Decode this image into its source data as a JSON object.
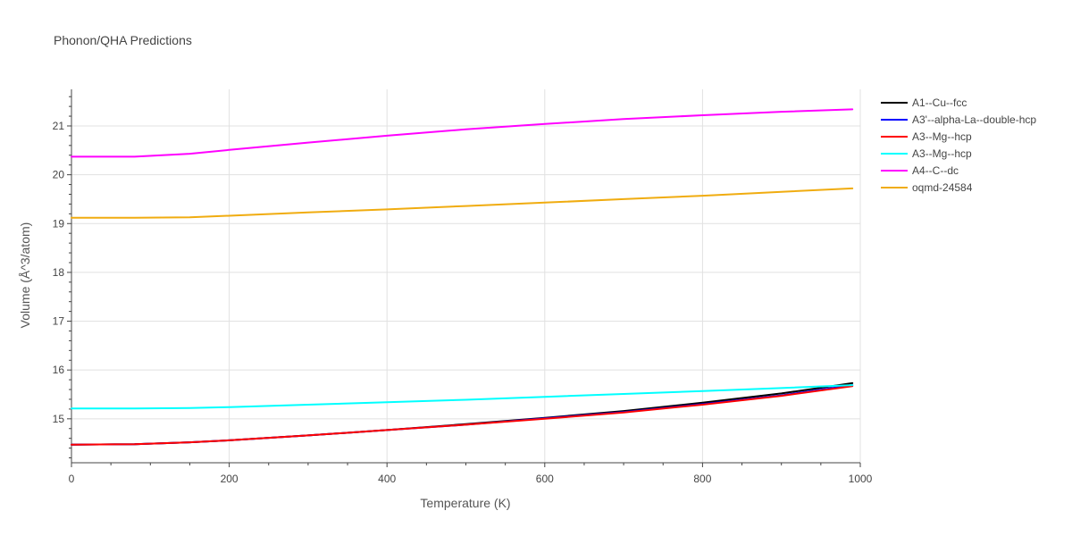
{
  "chart_data": {
    "type": "line",
    "title": "Phonon/QHA Predictions",
    "xlabel": "Temperature (K)",
    "ylabel": "Volume (Å^3/atom)",
    "xlim": [
      0,
      1000
    ],
    "ylim": [
      14.1,
      21.75
    ],
    "x_ticks": [
      0,
      200,
      400,
      600,
      800,
      1000
    ],
    "y_ticks": [
      15,
      16,
      17,
      18,
      19,
      20,
      21
    ],
    "grid": true,
    "legend_position": "top-right outside",
    "series": [
      {
        "name": "A1--Cu--fcc",
        "color": "#000000",
        "x": [
          0,
          80,
          150,
          200,
          300,
          400,
          500,
          600,
          700,
          800,
          900,
          990
        ],
        "y": [
          14.47,
          14.48,
          14.52,
          14.56,
          14.66,
          14.77,
          14.89,
          15.02,
          15.16,
          15.33,
          15.52,
          15.73
        ]
      },
      {
        "name": "A3'--alpha-La--double-hcp",
        "color": "#0000ff",
        "x": [
          0,
          80,
          150,
          200,
          300,
          400,
          500,
          600,
          700,
          800,
          900,
          990
        ],
        "y": [
          14.47,
          14.48,
          14.52,
          14.56,
          14.66,
          14.77,
          14.88,
          15.01,
          15.14,
          15.3,
          15.48,
          15.69
        ]
      },
      {
        "name": "A3--Mg--hcp",
        "color": "#ff0000",
        "x": [
          0,
          80,
          150,
          200,
          300,
          400,
          500,
          600,
          700,
          800,
          900,
          990
        ],
        "y": [
          14.47,
          14.48,
          14.52,
          14.56,
          14.66,
          14.77,
          14.88,
          15.0,
          15.13,
          15.29,
          15.47,
          15.67
        ]
      },
      {
        "name": "A3--Mg--hcp",
        "color": "#00ffff",
        "x": [
          0,
          80,
          150,
          200,
          300,
          400,
          500,
          600,
          700,
          800,
          900,
          990
        ],
        "y": [
          15.21,
          15.21,
          15.22,
          15.24,
          15.29,
          15.34,
          15.39,
          15.45,
          15.51,
          15.57,
          15.63,
          15.69
        ]
      },
      {
        "name": "A4--C--dc",
        "color": "#ff00ff",
        "x": [
          0,
          80,
          150,
          200,
          300,
          400,
          500,
          600,
          700,
          800,
          900,
          990
        ],
        "y": [
          20.37,
          20.37,
          20.43,
          20.51,
          20.66,
          20.8,
          20.93,
          21.04,
          21.14,
          21.22,
          21.29,
          21.34
        ]
      },
      {
        "name": "oqmd-24584",
        "color": "#f0ac10",
        "x": [
          0,
          80,
          150,
          200,
          300,
          400,
          500,
          600,
          700,
          800,
          900,
          990
        ],
        "y": [
          19.12,
          19.12,
          19.13,
          19.16,
          19.23,
          19.29,
          19.36,
          19.43,
          19.5,
          19.57,
          19.65,
          19.72
        ]
      }
    ]
  }
}
